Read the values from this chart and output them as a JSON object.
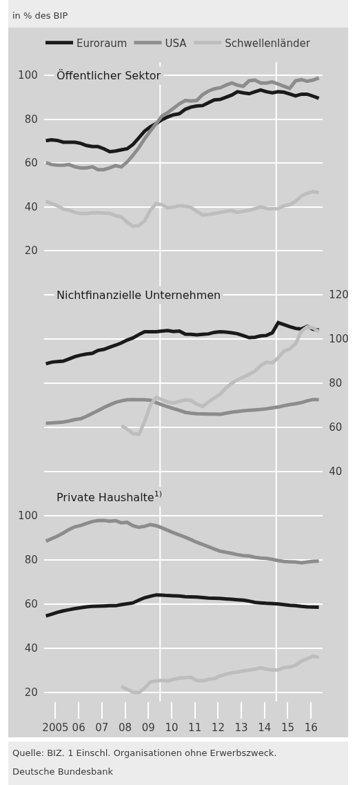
{
  "chart_data": [
    {
      "type": "line",
      "title": "Öffentlicher Sektor",
      "annotations": [
        "in % des BIP"
      ],
      "x": [
        "2005-02",
        "2005-05",
        "2005-08",
        "2005-11",
        "2006-02",
        "2006-05",
        "2006-08",
        "2006-11",
        "2007-02",
        "2007-05",
        "2007-08",
        "2007-11",
        "2008-02",
        "2008-05",
        "2008-08",
        "2008-11",
        "2009-02",
        "2009-05",
        "2009-08",
        "2009-11",
        "2010-02",
        "2010-05",
        "2010-08",
        "2010-11",
        "2011-02",
        "2011-05",
        "2011-08",
        "2011-11",
        "2012-02",
        "2012-05",
        "2012-08",
        "2012-11",
        "2013-02",
        "2013-05",
        "2013-08",
        "2013-11",
        "2014-02",
        "2014-05",
        "2014-08",
        "2014-11",
        "2015-02",
        "2015-05",
        "2015-08",
        "2015-11",
        "2016-02",
        "2016-05",
        "2016-08",
        "2016-11"
      ],
      "series": [
        {
          "name": "Euroraum",
          "color": "#1a1a1a",
          "values": [
            70.2,
            70.6,
            70.3,
            69.5,
            69.5,
            69.5,
            69.0,
            68.0,
            67.5,
            67.5,
            66.5,
            65.2,
            65.5,
            66,
            66.5,
            68.5,
            71.5,
            74.5,
            76.5,
            78,
            79.8,
            81,
            82,
            82.5,
            84.5,
            85.5,
            86,
            86.2,
            87.5,
            88.8,
            89,
            90,
            91,
            92.5,
            92,
            91.6,
            92.5,
            93.3,
            92.5,
            92,
            92.5,
            92.3,
            91.5,
            90.6,
            91.4,
            91.4,
            90.5,
            89.5
          ]
        },
        {
          "name": "USA",
          "color": "#8c8c8c",
          "values": [
            60.2,
            59.3,
            59,
            59,
            59.3,
            58.3,
            57.8,
            57.8,
            58.3,
            57,
            57,
            57.8,
            58.8,
            58.2,
            60.5,
            63.5,
            67,
            71,
            74.6,
            78,
            81.5,
            83,
            85,
            87,
            88.5,
            88.3,
            88.5,
            91.2,
            92.8,
            93.8,
            94.3,
            95.5,
            96.5,
            95.5,
            95,
            97.5,
            97.8,
            96.5,
            96.5,
            97,
            96,
            95,
            94,
            97.5,
            98,
            97.3,
            97.8,
            98.8
          ]
        },
        {
          "name": "Schwellenländer",
          "color": "#bdbdbd",
          "values": [
            42.6,
            41.5,
            40.5,
            39,
            38.5,
            37.5,
            37,
            37,
            37.3,
            37.4,
            37.2,
            37,
            36,
            35.5,
            33,
            31.2,
            31.5,
            33.5,
            38.5,
            41.5,
            41,
            39.5,
            40,
            40.5,
            40.3,
            39.8,
            38,
            36.3,
            36.5,
            37,
            37.5,
            38,
            38.3,
            37.5,
            38,
            38.5,
            39.2,
            40,
            39.3,
            39.2,
            39.2,
            40.5,
            41,
            42.5,
            45,
            46.2,
            47,
            46.5
          ]
        }
      ],
      "xlim": [
        "2005-01",
        "2017-01"
      ],
      "ylim": [
        10,
        106
      ],
      "yticks": [
        20,
        40,
        60,
        80,
        100
      ],
      "grid": "y",
      "legend": "top",
      "tick_labels": "y",
      "ref_lines": [
        {
          "axis": "x",
          "value": "2010-01",
          "color": "#ffffff"
        },
        {
          "axis": "x",
          "value": "2015-01",
          "color": "#ffffff"
        }
      ]
    },
    {
      "type": "line",
      "title": "Nichtfinanzielle Unternehmen",
      "x": [
        "2005-02",
        "2005-05",
        "2005-08",
        "2005-11",
        "2006-02",
        "2006-05",
        "2006-08",
        "2006-11",
        "2007-02",
        "2007-05",
        "2007-08",
        "2007-11",
        "2008-02",
        "2008-05",
        "2008-08",
        "2008-11",
        "2009-02",
        "2009-05",
        "2009-08",
        "2009-11",
        "2010-02",
        "2010-05",
        "2010-08",
        "2010-11",
        "2011-02",
        "2011-05",
        "2011-08",
        "2011-11",
        "2012-02",
        "2012-05",
        "2012-08",
        "2012-11",
        "2013-02",
        "2013-05",
        "2013-08",
        "2013-11",
        "2014-02",
        "2014-05",
        "2014-08",
        "2014-11",
        "2015-02",
        "2015-05",
        "2015-08",
        "2015-11",
        "2016-02",
        "2016-05",
        "2016-08",
        "2016-11"
      ],
      "series": [
        {
          "color": "#1a1a1a",
          "axis": "y2",
          "values": [
            88.8,
            89.5,
            89.8,
            90,
            91,
            92,
            92.7,
            93.2,
            93.5,
            94.8,
            95.3,
            96.3,
            97.2,
            98.2,
            99.5,
            100.5,
            102,
            103.3,
            103.3,
            103.3,
            103.6,
            103.8,
            103.4,
            103.6,
            102.2,
            102.1,
            101.9,
            102.1,
            102.3,
            103,
            103.3,
            103.1,
            102.8,
            102.4,
            101.5,
            100.6,
            100.8,
            101.4,
            101.6,
            102.8,
            107.4,
            106.5,
            105.6,
            104.8,
            104.5,
            105.7,
            104.4,
            104.1
          ]
        },
        {
          "color": "#8c8c8c",
          "axis": "y2",
          "values": [
            61.9,
            62,
            62.2,
            62.4,
            62.9,
            63.5,
            63.9,
            65,
            66.3,
            67.6,
            69,
            70.2,
            71.3,
            72,
            72.5,
            72.6,
            72.5,
            72.5,
            72.3,
            71.2,
            70.2,
            69.3,
            68.5,
            67.7,
            66.8,
            66.4,
            66.2,
            66.1,
            66,
            66,
            65.9,
            66.4,
            66.9,
            67.2,
            67.5,
            67.7,
            67.9,
            68.1,
            68.4,
            68.8,
            69.2,
            69.8,
            70.3,
            70.7,
            71.2,
            72,
            72.6,
            72.6
          ]
        },
        {
          "color": "#bdbdbd",
          "axis": "y2",
          "values": [
            null,
            null,
            null,
            null,
            null,
            null,
            null,
            null,
            null,
            null,
            null,
            null,
            null,
            60.8,
            59.2,
            57.2,
            56.8,
            62.5,
            70,
            73.6,
            72.5,
            71.5,
            71,
            71.8,
            72.4,
            72.2,
            70.5,
            69.5,
            71.5,
            73.3,
            75,
            77.8,
            80,
            81.5,
            82.7,
            84,
            85.5,
            88,
            89.5,
            89.2,
            91.5,
            94.5,
            95.5,
            97.8,
            103.5,
            105.5,
            105,
            103.3
          ]
        }
      ],
      "xlim": [
        "2005-01",
        "2017-01"
      ],
      "y2lim": [
        30,
        130
      ],
      "y2ticks": [
        40,
        60,
        80,
        100,
        120
      ],
      "grid": "y",
      "tick_labels": "y",
      "ref_lines": [
        {
          "axis": "x",
          "value": "2010-01",
          "color": "#ffffff"
        },
        {
          "axis": "x",
          "value": "2015-01",
          "color": "#ffffff"
        }
      ]
    },
    {
      "type": "line",
      "title": "Private Haushalte$^{1)}$",
      "annotations": [
        "Quelle: BIZ. 1 Einschl. Organisationen ohne Erwerbszweck.",
        "Deutsche Bundesbank"
      ],
      "x": [
        "2005-02",
        "2005-05",
        "2005-08",
        "2005-11",
        "2006-02",
        "2006-05",
        "2006-08",
        "2006-11",
        "2007-02",
        "2007-05",
        "2007-08",
        "2007-11",
        "2008-02",
        "2008-05",
        "2008-08",
        "2008-11",
        "2009-02",
        "2009-05",
        "2009-08",
        "2009-11",
        "2010-02",
        "2010-05",
        "2010-08",
        "2010-11",
        "2011-02",
        "2011-05",
        "2011-08",
        "2011-11",
        "2012-02",
        "2012-05",
        "2012-08",
        "2012-11",
        "2013-02",
        "2013-05",
        "2013-08",
        "2013-11",
        "2014-02",
        "2014-05",
        "2014-08",
        "2014-11",
        "2015-02",
        "2015-05",
        "2015-08",
        "2015-11",
        "2016-02",
        "2016-05",
        "2016-08",
        "2016-11"
      ],
      "series": [
        {
          "color": "#8c8c8c",
          "values": [
            88.5,
            89.6,
            90.8,
            92.2,
            93.8,
            95,
            95.6,
            96.5,
            97.4,
            97.8,
            97.9,
            97.5,
            97.8,
            96.8,
            97,
            95.5,
            94.8,
            95.2,
            96,
            95.5,
            94.5,
            93.4,
            92.3,
            91.3,
            90.3,
            89.2,
            88,
            87,
            86,
            85,
            84,
            83.5,
            83,
            82.4,
            82,
            81.8,
            81.2,
            80.9,
            80.7,
            80.3,
            79.7,
            79.3,
            79.2,
            79.1,
            78.7,
            79.1,
            79.4,
            79.5
          ]
        },
        {
          "color": "#1a1a1a",
          "values": [
            54.7,
            55.5,
            56.3,
            57,
            57.5,
            58,
            58.4,
            58.8,
            59,
            59.1,
            59.2,
            59.3,
            59.3,
            59.8,
            60.2,
            60.6,
            61.8,
            62.9,
            63.6,
            64.2,
            64.1,
            63.9,
            63.8,
            63.7,
            63.4,
            63.3,
            63.2,
            63,
            62.8,
            62.7,
            62.6,
            62.4,
            62.2,
            62,
            61.8,
            61.4,
            60.8,
            60.6,
            60.4,
            60.3,
            60.1,
            59.8,
            59.5,
            59.3,
            59,
            58.8,
            58.7,
            58.6
          ]
        },
        {
          "color": "#bdbdbd",
          "values": [
            null,
            null,
            null,
            null,
            null,
            null,
            null,
            null,
            null,
            null,
            null,
            null,
            null,
            22.8,
            21.5,
            20.2,
            20,
            22,
            24.8,
            25.3,
            25.5,
            25.3,
            26,
            26.6,
            26.8,
            26.9,
            25.5,
            25.3,
            26,
            26.3,
            27.5,
            28.3,
            29,
            29.3,
            29.8,
            30.2,
            30.6,
            31.2,
            30.6,
            30.2,
            30.3,
            31.3,
            31.6,
            32.3,
            34.3,
            35.3,
            36.5,
            36
          ]
        }
      ],
      "xlim": [
        "2005-01",
        "2017-01"
      ],
      "ylim": [
        16,
        110
      ],
      "yticks": [
        20,
        40,
        60,
        80,
        100
      ],
      "grid": "y",
      "xticks": [
        {
          "value": "2005-07",
          "label": "2005"
        },
        {
          "value": "2006-07",
          "label": "06"
        },
        {
          "value": "2007-07",
          "label": "07"
        },
        {
          "value": "2008-07",
          "label": "08"
        },
        {
          "value": "2009-07",
          "label": "09"
        },
        {
          "value": "2010-07",
          "label": "10"
        },
        {
          "value": "2011-07",
          "label": "11"
        },
        {
          "value": "2012-07",
          "label": "12"
        },
        {
          "value": "2013-07",
          "label": "13"
        },
        {
          "value": "2014-07",
          "label": "14"
        },
        {
          "value": "2015-07",
          "label": "15"
        },
        {
          "value": "2016-07",
          "label": "16"
        }
      ],
      "ref_lines": [
        {
          "axis": "x",
          "value": "2010-01",
          "color": "#ffffff"
        },
        {
          "axis": "x",
          "value": "2015-01",
          "color": "#ffffff"
        }
      ]
    }
  ]
}
